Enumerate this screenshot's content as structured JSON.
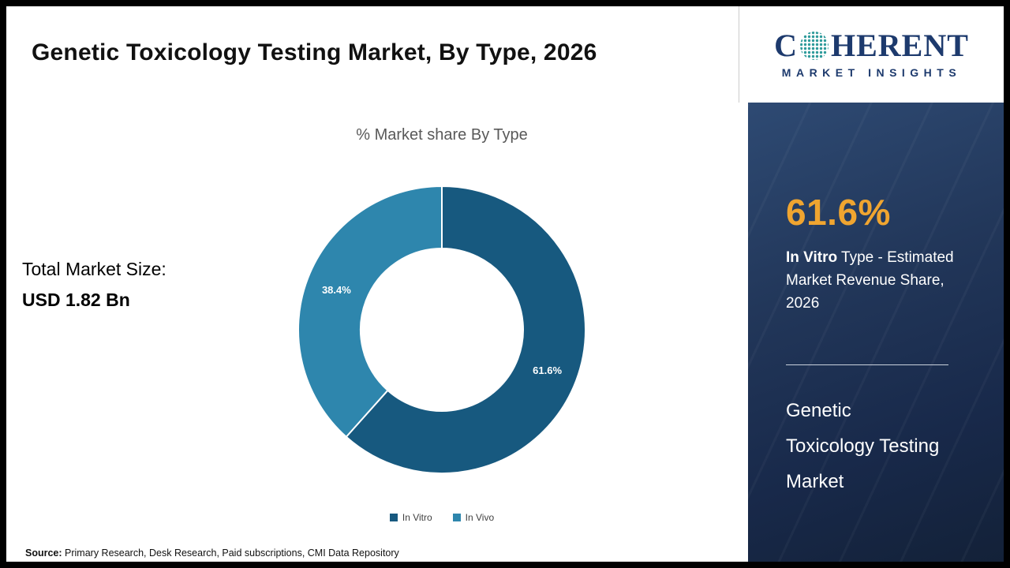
{
  "header": {
    "title": "Genetic Toxicology Testing Market, By Type, 2026"
  },
  "logo": {
    "brand_part1": "C",
    "brand_part2": "HERENT",
    "brand_sub": "MARKET INSIGHTS",
    "globe_icon": "dotted-globe"
  },
  "left_panel": {
    "total_label": "Total Market Size:",
    "total_value": "USD 1.82 Bn"
  },
  "chart_data": {
    "type": "pie",
    "donut": true,
    "title": "% Market share By Type",
    "labels": [
      "In Vitro",
      "In Vivo"
    ],
    "values": [
      61.6,
      38.4
    ],
    "colors": [
      "#17597f",
      "#2e86ad"
    ],
    "data_labels": [
      "61.6%",
      "38.4%"
    ],
    "legend_position": "bottom",
    "start_angle_deg": 0,
    "direction": "clockwise"
  },
  "sidebar": {
    "highlight_value": "61.6%",
    "highlight_bold": "In Vitro",
    "highlight_rest": " Type - Estimated Market Revenue Share, 2026",
    "market_name_lines": [
      "Genetic",
      "Toxicology Testing",
      "Market"
    ]
  },
  "footer": {
    "source_label": "Source:",
    "source_text": " Primary Research, Desk Research, Paid subscriptions, CMI Data Repository"
  },
  "theme": {
    "accent_orange": "#f0a530",
    "panel_navy_top": "#2e4a73",
    "panel_navy_bottom": "#132138",
    "logo_navy": "#1d3a6d",
    "logo_globe_teal": "#2e9b9b",
    "slice_dark_blue": "#17597f",
    "slice_light_blue": "#2e86ad",
    "subtitle_gray": "#595959"
  }
}
